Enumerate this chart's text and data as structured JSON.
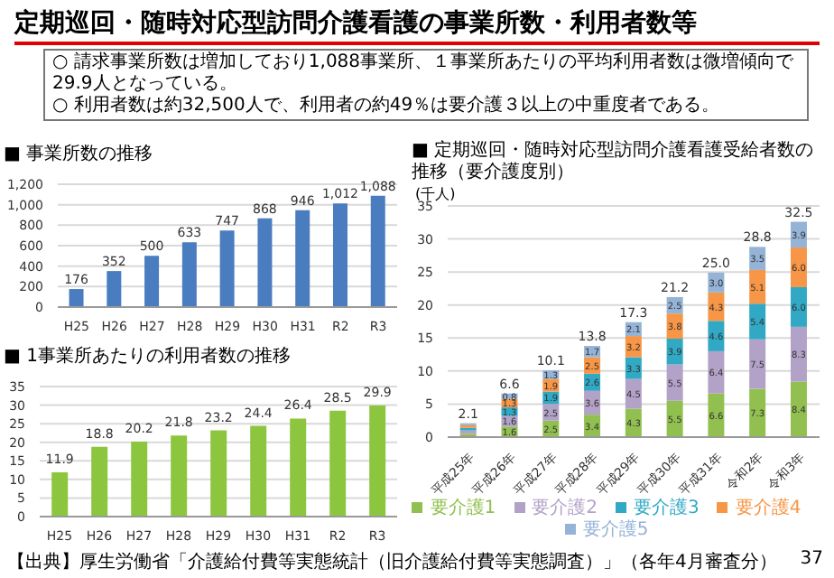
{
  "chart_data": [
    {
      "type": "other",
      "title": "定期巡回・随時対応型訪問介護看護の事業所数・利用者数等",
      "annotations": [
        "○ 請求事業所数は増加しており1,088事業所、１事業所あたりの平均利用者数は微増傾向で29.9人となっている。",
        "○ 利用者数は約32,500人で、利用者の約49％は要介護３以上の中重度者である。",
        "【出典】厚生労働省「介護給付費等実態統計（旧介護給付費等実態調査）」（各年4月審査分）",
        "37"
      ]
    },
    {
      "type": "bar",
      "title": "■ 事業所数の推移",
      "categories": [
        "H25",
        "H26",
        "H27",
        "H28",
        "H29",
        "H30",
        "H31",
        "R2",
        "R3"
      ],
      "values": [
        176,
        352,
        500,
        633,
        747,
        868,
        946,
        1012,
        1088
      ],
      "value_labels": [
        "176",
        "352",
        "500",
        "633",
        "747",
        "868",
        "946",
        "1,012",
        "1,088"
      ],
      "color": "#4a7cc0",
      "ylim": [
        0,
        1200
      ],
      "yticks": [
        {
          "value": 0,
          "label": "0"
        },
        {
          "value": 200,
          "label": "200"
        },
        {
          "value": 400,
          "label": "400"
        },
        {
          "value": 600,
          "label": "600"
        },
        {
          "value": 800,
          "label": "800"
        },
        {
          "value": 1000,
          "label": "1,000"
        },
        {
          "value": 1200,
          "label": "1,200"
        }
      ],
      "grid": "y"
    },
    {
      "type": "bar",
      "title": "■ 1事業所あたりの利用者数の推移",
      "categories": [
        "H25",
        "H26",
        "H27",
        "H28",
        "H29",
        "H30",
        "H31",
        "R2",
        "R3"
      ],
      "values": [
        11.9,
        18.8,
        20.2,
        21.8,
        23.2,
        24.4,
        26.4,
        28.5,
        29.9
      ],
      "data_labels": true,
      "color": "#8cc63f",
      "ylim": [
        0,
        35
      ],
      "yticks": [
        0,
        5,
        10,
        15,
        20,
        25,
        30,
        35
      ],
      "grid": "y"
    },
    {
      "type": "bar",
      "title": "■ 定期巡回・随時対応型訪問介護看護受給者数の推移（要介護度別）",
      "ylabel": "(千人)",
      "categories": [
        "平成25年",
        "平成26年",
        "平成27年",
        "平成28年",
        "平成29年",
        "平成30年",
        "平成31年",
        "令和2年",
        "令和3年"
      ],
      "stacked": true,
      "series": [
        {
          "name": "要介護1",
          "color": "#92c050",
          "values": [
            0.5,
            1.6,
            2.5,
            3.4,
            4.3,
            5.5,
            6.6,
            7.3,
            8.4
          ],
          "value_labels": [
            null,
            "1.6",
            "2.5",
            "3.4",
            "4.3",
            "5.5",
            "6.6",
            "7.3",
            "8.4"
          ]
        },
        {
          "name": "要介護2",
          "color": "#b3a2c7",
          "values": [
            0.5,
            1.6,
            2.5,
            3.6,
            4.5,
            5.5,
            6.4,
            7.5,
            8.3
          ],
          "value_labels": [
            null,
            "1.6",
            "2.5",
            "3.6",
            "4.5",
            "5.5",
            "6.4",
            "7.5",
            "8.3"
          ]
        },
        {
          "name": "要介護3",
          "color": "#31a9c5",
          "values": [
            0.4,
            1.3,
            1.9,
            2.6,
            3.3,
            3.9,
            4.6,
            5.4,
            6.0
          ],
          "value_labels": [
            null,
            "1.3",
            "1.9",
            "2.6",
            "3.3",
            "3.9",
            "4.6",
            "5.4",
            "6.0"
          ]
        },
        {
          "name": "要介護4",
          "color": "#f79646",
          "values": [
            0.4,
            1.3,
            1.9,
            2.5,
            3.2,
            3.8,
            4.3,
            5.1,
            6.0
          ],
          "value_labels": [
            null,
            "1.3",
            "1.9",
            "2.5",
            "3.2",
            "3.8",
            "4.3",
            "5.1",
            "6.0"
          ]
        },
        {
          "name": "要介護5",
          "color": "#95b3d7",
          "values": [
            0.3,
            0.8,
            1.3,
            1.7,
            2.1,
            2.5,
            3.0,
            3.5,
            3.9
          ],
          "value_labels": [
            null,
            "0.8",
            "1.3",
            "1.7",
            "2.1",
            "2.5",
            "3.0",
            "3.5",
            "3.9"
          ]
        }
      ],
      "totals": [
        "2.1",
        "6.6",
        "10.1",
        "13.8",
        "17.3",
        "21.2",
        "25.0",
        "28.8",
        "32.5"
      ],
      "ylim": [
        0,
        35
      ],
      "yticks": [
        0,
        5,
        10,
        15,
        20,
        25,
        30,
        35
      ],
      "grid": "y",
      "legend": "bottom"
    }
  ]
}
